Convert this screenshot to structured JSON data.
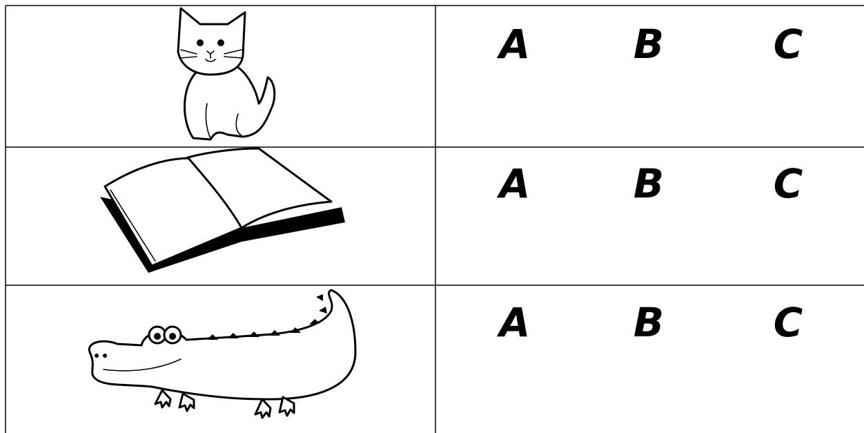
{
  "table": {
    "rows": [
      {
        "choices": [
          "A",
          "B",
          "C"
        ]
      },
      {
        "choices": [
          "A",
          "B",
          "C"
        ]
      },
      {
        "choices": [
          "A",
          "B",
          "C"
        ]
      }
    ]
  }
}
